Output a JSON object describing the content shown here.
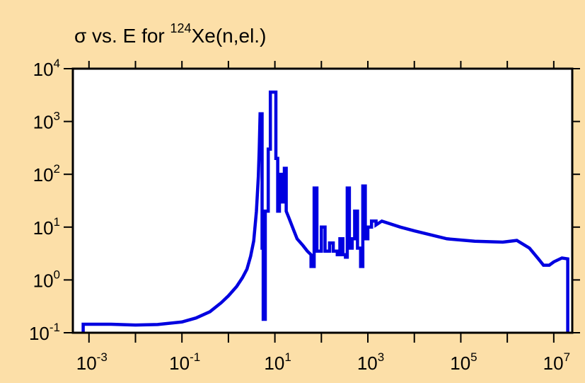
{
  "chart_data": {
    "type": "line",
    "title": {
      "symbol": "σ",
      "text1": " vs. E for ",
      "isotope_mass": "124",
      "text2": "Xe(n,el.)"
    },
    "xlabel": "",
    "ylabel": "",
    "x_scale": "log",
    "y_scale": "log",
    "xlim": [
      0.00045,
      25000000
    ],
    "ylim": [
      0.1,
      10000
    ],
    "x_ticks": [
      {
        "base": "10",
        "exp": "-3",
        "value": 0.001
      },
      {
        "base": "10",
        "exp": "-1",
        "value": 0.1
      },
      {
        "base": "10",
        "exp": "1",
        "value": 10
      },
      {
        "base": "10",
        "exp": "3",
        "value": 1000
      },
      {
        "base": "10",
        "exp": "5",
        "value": 100000
      },
      {
        "base": "10",
        "exp": "7",
        "value": 10000000
      }
    ],
    "y_ticks": [
      {
        "base": "10",
        "exp": "-1",
        "value": 0.1
      },
      {
        "base": "10",
        "exp": "0",
        "value": 1
      },
      {
        "base": "10",
        "exp": "1",
        "value": 10
      },
      {
        "base": "10",
        "exp": "2",
        "value": 100
      },
      {
        "base": "10",
        "exp": "3",
        "value": 1000
      },
      {
        "base": "10",
        "exp": "4",
        "value": 10000
      }
    ],
    "grid": false,
    "legend": "none",
    "colors": {
      "background": "#FCDFA8",
      "plot_area": "#FFFFFF",
      "line": "#0000E0",
      "axes": "#000000"
    },
    "series": [
      {
        "values": [
          [
            0.00075,
            0.1
          ],
          [
            0.00075,
            0.145
          ],
          [
            0.003,
            0.145
          ],
          [
            0.01,
            0.14
          ],
          [
            0.03,
            0.143
          ],
          [
            0.1,
            0.16
          ],
          [
            0.2,
            0.19
          ],
          [
            0.4,
            0.25
          ],
          [
            0.7,
            0.37
          ],
          [
            1.0,
            0.5
          ],
          [
            1.5,
            0.75
          ],
          [
            2.0,
            1.1
          ],
          [
            2.5,
            1.6
          ],
          [
            3.0,
            2.8
          ],
          [
            3.5,
            5.5
          ],
          [
            4.0,
            20
          ],
          [
            4.4,
            90
          ],
          [
            4.6,
            300
          ],
          [
            4.8,
            1400
          ],
          [
            5.3,
            1400
          ],
          [
            5.3,
            4
          ],
          [
            5.6,
            4
          ],
          [
            5.6,
            0.18
          ],
          [
            6.2,
            0.18
          ],
          [
            6.2,
            20
          ],
          [
            7.2,
            20
          ],
          [
            7.2,
            300
          ],
          [
            8.0,
            300
          ],
          [
            8.0,
            3600
          ],
          [
            10.5,
            3600
          ],
          [
            10.5,
            200
          ],
          [
            11.5,
            200
          ],
          [
            11.5,
            20
          ],
          [
            12.5,
            20
          ],
          [
            12.5,
            100
          ],
          [
            14,
            100
          ],
          [
            14,
            30
          ],
          [
            16,
            30
          ],
          [
            16,
            130
          ],
          [
            17.5,
            130
          ],
          [
            17.5,
            20
          ],
          [
            20,
            15
          ],
          [
            25,
            9
          ],
          [
            30,
            6
          ],
          [
            40,
            4.5
          ],
          [
            50,
            3.5
          ],
          [
            60,
            3
          ],
          [
            60,
            1.8
          ],
          [
            70,
            1.8
          ],
          [
            70,
            55
          ],
          [
            80,
            55
          ],
          [
            80,
            3.5
          ],
          [
            100,
            3.5
          ],
          [
            100,
            10
          ],
          [
            120,
            10
          ],
          [
            120,
            3.5
          ],
          [
            150,
            3.5
          ],
          [
            150,
            5
          ],
          [
            180,
            5
          ],
          [
            180,
            3.5
          ],
          [
            220,
            3.5
          ],
          [
            220,
            3
          ],
          [
            250,
            3
          ],
          [
            250,
            6
          ],
          [
            290,
            6
          ],
          [
            290,
            3
          ],
          [
            330,
            3
          ],
          [
            330,
            2.7
          ],
          [
            360,
            2.7
          ],
          [
            360,
            55
          ],
          [
            400,
            55
          ],
          [
            400,
            4
          ],
          [
            460,
            4
          ],
          [
            460,
            6
          ],
          [
            520,
            6
          ],
          [
            520,
            20
          ],
          [
            600,
            20
          ],
          [
            600,
            4
          ],
          [
            700,
            4
          ],
          [
            700,
            1.8
          ],
          [
            780,
            1.8
          ],
          [
            780,
            60
          ],
          [
            880,
            60
          ],
          [
            880,
            6
          ],
          [
            1000,
            6
          ],
          [
            1000,
            10
          ],
          [
            1200,
            10
          ],
          [
            1200,
            13
          ],
          [
            1500,
            13
          ],
          [
            1500,
            11
          ],
          [
            2000,
            13
          ],
          [
            5000,
            10
          ],
          [
            10000,
            8.5
          ],
          [
            50000,
            6
          ],
          [
            200000,
            5.4
          ],
          [
            800000,
            5.2
          ],
          [
            1600000,
            5.6
          ],
          [
            3000000,
            4
          ],
          [
            4500000,
            2.6
          ],
          [
            6000000,
            1.9
          ],
          [
            8000000,
            1.9
          ],
          [
            10000000,
            2.2
          ],
          [
            15000000,
            2.6
          ],
          [
            20000000,
            2.5
          ],
          [
            20000000,
            0.1
          ]
        ]
      }
    ]
  }
}
